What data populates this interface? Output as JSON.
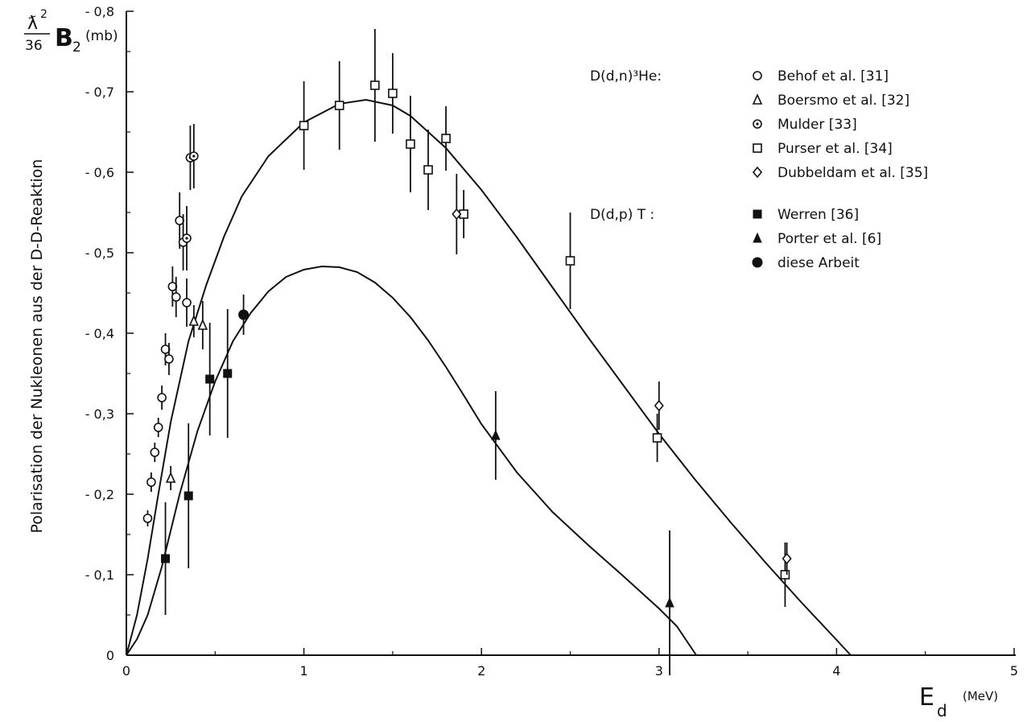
{
  "chart_data": {
    "type": "scatter",
    "ylabel_html": {
      "prefix_num": "ƛ",
      "prefix_exp": "2",
      "prefix_den": "36",
      "main": "B",
      "sub": "2",
      "unit": "(mb)"
    },
    "ylabel_axis": "Polarisation der Nukleonen aus der D-D-Reaktion",
    "xlabel": {
      "main": "E",
      "sub": "d",
      "unit": "(MeV)"
    },
    "xlim": [
      0,
      5
    ],
    "ylim": [
      0,
      0.8
    ],
    "x_ticks": [
      "0",
      "1",
      "2",
      "3",
      "4",
      "5"
    ],
    "y_ticks": [
      "0",
      "- 0,1",
      "- 0,2",
      "- 0,3",
      "- 0,4",
      "- 0,5",
      "- 0,6",
      "- 0,7",
      "- 0,8"
    ],
    "legend": {
      "groups": [
        {
          "reaction": "D(d,n)³He:",
          "entries": [
            {
              "marker": "circle-open",
              "label": "Behof et al. [31]"
            },
            {
              "marker": "triangle-open",
              "label": "Boersmo et al. [32]"
            },
            {
              "marker": "circle-dot",
              "label": "Mulder     [33]"
            },
            {
              "marker": "square-open",
              "label": "Purser et al. [34]"
            },
            {
              "marker": "diamond-open",
              "label": "Dubbeldam et al. [35]"
            }
          ]
        },
        {
          "reaction": "D(d,p) T :",
          "entries": [
            {
              "marker": "square-filled",
              "label": "Werren     [36]"
            },
            {
              "marker": "triangle-filled",
              "label": "Porter et al. [6]"
            },
            {
              "marker": "circle-filled",
              "label": "diese Arbeit"
            }
          ]
        }
      ]
    },
    "series": [
      {
        "name": "Behof et al. [31]",
        "marker": "circle-open",
        "points": [
          {
            "x": 0.12,
            "y": 0.17,
            "err": 0.01
          },
          {
            "x": 0.14,
            "y": 0.215,
            "err": 0.012
          },
          {
            "x": 0.16,
            "y": 0.252,
            "err": 0.012
          },
          {
            "x": 0.18,
            "y": 0.283,
            "err": 0.012
          },
          {
            "x": 0.2,
            "y": 0.32,
            "err": 0.015
          },
          {
            "x": 0.22,
            "y": 0.38,
            "err": 0.02
          },
          {
            "x": 0.24,
            "y": 0.368,
            "err": 0.02
          },
          {
            "x": 0.26,
            "y": 0.458,
            "err": 0.025
          },
          {
            "x": 0.28,
            "y": 0.445,
            "err": 0.025
          },
          {
            "x": 0.3,
            "y": 0.54,
            "err": 0.035
          },
          {
            "x": 0.32,
            "y": 0.513,
            "err": 0.035
          },
          {
            "x": 0.34,
            "y": 0.438,
            "err": 0.03
          }
        ]
      },
      {
        "name": "Boersmo et al. [32]",
        "marker": "triangle-open",
        "points": [
          {
            "x": 0.25,
            "y": 0.22,
            "err": 0.015
          },
          {
            "x": 0.38,
            "y": 0.415,
            "err": 0.02
          },
          {
            "x": 0.43,
            "y": 0.41,
            "err": 0.03
          }
        ]
      },
      {
        "name": "Mulder [33]",
        "marker": "circle-dot",
        "points": [
          {
            "x": 0.34,
            "y": 0.518,
            "err": 0.04
          },
          {
            "x": 0.36,
            "y": 0.618,
            "err": 0.04
          },
          {
            "x": 0.38,
            "y": 0.62,
            "err": 0.04
          }
        ]
      },
      {
        "name": "Purser et al. [34]",
        "marker": "square-open",
        "points": [
          {
            "x": 1.0,
            "y": 0.658,
            "err": 0.055
          },
          {
            "x": 1.2,
            "y": 0.683,
            "err": 0.055
          },
          {
            "x": 1.4,
            "y": 0.708,
            "err": 0.07
          },
          {
            "x": 1.5,
            "y": 0.698,
            "err": 0.05
          },
          {
            "x": 1.6,
            "y": 0.635,
            "err": 0.06
          },
          {
            "x": 1.7,
            "y": 0.603,
            "err": 0.05
          },
          {
            "x": 1.8,
            "y": 0.642,
            "err": 0.04
          },
          {
            "x": 1.9,
            "y": 0.548,
            "err": 0.03
          },
          {
            "x": 2.5,
            "y": 0.49,
            "err": 0.06
          },
          {
            "x": 2.99,
            "y": 0.27,
            "err": 0.03
          },
          {
            "x": 3.71,
            "y": 0.1,
            "err": 0.04
          }
        ]
      },
      {
        "name": "Dubbeldam et al. [35]",
        "marker": "diamond-open",
        "points": [
          {
            "x": 1.86,
            "y": 0.548,
            "err": 0.05
          },
          {
            "x": 3.0,
            "y": 0.31,
            "err": 0.03
          },
          {
            "x": 3.72,
            "y": 0.12,
            "err": 0.02
          }
        ]
      },
      {
        "name": "Werren [36]",
        "marker": "square-filled",
        "points": [
          {
            "x": 0.22,
            "y": 0.12,
            "err": 0.07
          },
          {
            "x": 0.35,
            "y": 0.198,
            "err": 0.09
          },
          {
            "x": 0.47,
            "y": 0.343,
            "err": 0.07
          },
          {
            "x": 0.57,
            "y": 0.35,
            "err": 0.08
          }
        ]
      },
      {
        "name": "Porter et al. [6]",
        "marker": "triangle-filled",
        "points": [
          {
            "x": 2.08,
            "y": 0.273,
            "err": 0.055
          },
          {
            "x": 3.06,
            "y": 0.065,
            "err": 0.09
          }
        ]
      },
      {
        "name": "diese Arbeit",
        "marker": "circle-filled",
        "points": [
          {
            "x": 0.66,
            "y": 0.423,
            "err": 0.025
          }
        ]
      }
    ],
    "curves": [
      {
        "name": "upper",
        "points": [
          [
            0,
            0
          ],
          [
            0.06,
            0.05
          ],
          [
            0.12,
            0.12
          ],
          [
            0.18,
            0.2
          ],
          [
            0.25,
            0.29
          ],
          [
            0.35,
            0.39
          ],
          [
            0.45,
            0.46
          ],
          [
            0.55,
            0.52
          ],
          [
            0.65,
            0.57
          ],
          [
            0.8,
            0.62
          ],
          [
            1.0,
            0.662
          ],
          [
            1.2,
            0.685
          ],
          [
            1.35,
            0.69
          ],
          [
            1.5,
            0.683
          ],
          [
            1.6,
            0.67
          ],
          [
            1.8,
            0.63
          ],
          [
            2.0,
            0.578
          ],
          [
            2.2,
            0.519
          ],
          [
            2.4,
            0.457
          ],
          [
            2.6,
            0.395
          ],
          [
            2.8,
            0.335
          ],
          [
            3.0,
            0.275
          ],
          [
            3.2,
            0.219
          ],
          [
            3.4,
            0.166
          ],
          [
            3.6,
            0.115
          ],
          [
            3.8,
            0.066
          ],
          [
            4.0,
            0.019
          ],
          [
            4.08,
            0.0
          ]
        ]
      },
      {
        "name": "lower",
        "points": [
          [
            0,
            0
          ],
          [
            0.06,
            0.02
          ],
          [
            0.12,
            0.05
          ],
          [
            0.2,
            0.11
          ],
          [
            0.3,
            0.2
          ],
          [
            0.4,
            0.278
          ],
          [
            0.5,
            0.34
          ],
          [
            0.6,
            0.39
          ],
          [
            0.7,
            0.425
          ],
          [
            0.8,
            0.452
          ],
          [
            0.9,
            0.47
          ],
          [
            1.0,
            0.479
          ],
          [
            1.1,
            0.483
          ],
          [
            1.2,
            0.482
          ],
          [
            1.3,
            0.476
          ],
          [
            1.4,
            0.463
          ],
          [
            1.5,
            0.444
          ],
          [
            1.6,
            0.42
          ],
          [
            1.7,
            0.391
          ],
          [
            1.8,
            0.358
          ],
          [
            1.9,
            0.323
          ],
          [
            2.0,
            0.287
          ],
          [
            2.2,
            0.227
          ],
          [
            2.4,
            0.178
          ],
          [
            2.6,
            0.137
          ],
          [
            2.8,
            0.098
          ],
          [
            3.0,
            0.058
          ],
          [
            3.1,
            0.036
          ],
          [
            3.21,
            0.0
          ]
        ]
      }
    ]
  }
}
